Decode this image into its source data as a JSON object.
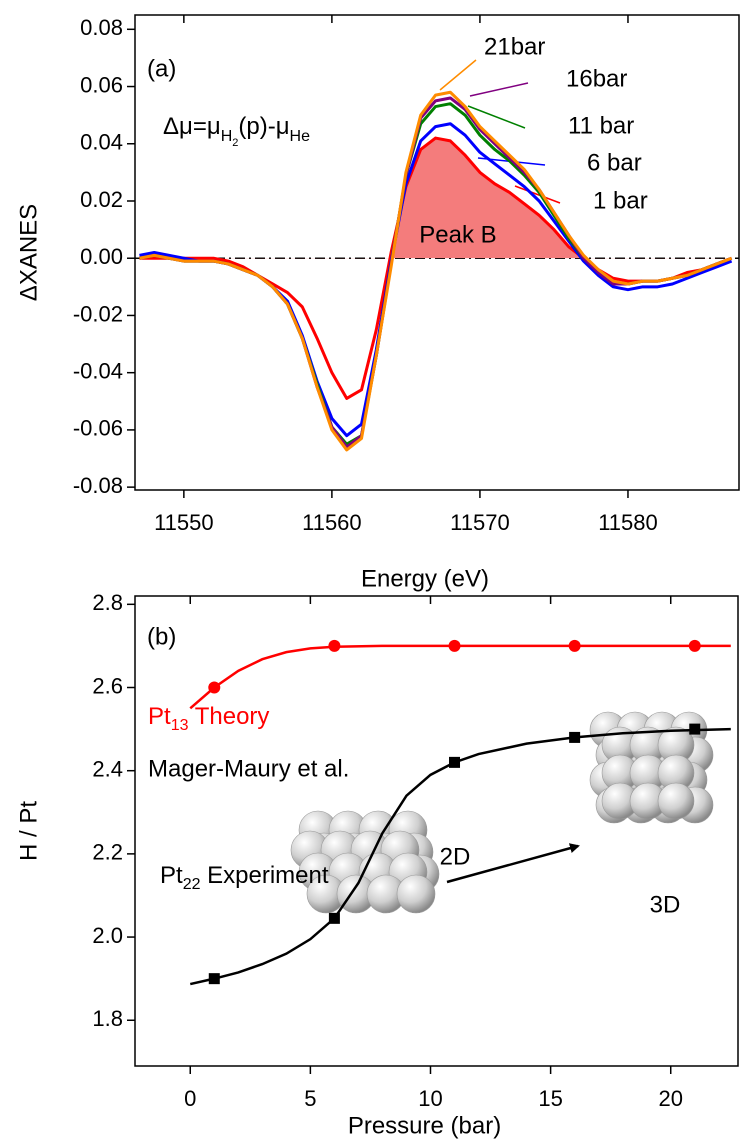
{
  "chart_data": [
    {
      "type": "line",
      "xlabel": "Energy (eV)",
      "ylabel": "ΔXANES",
      "panel_label": "(a)",
      "formula": {
        "a": "Δμ=μ",
        "b": "H",
        "c": "2",
        "d": "(p)-μ",
        "e": "He"
      },
      "annotation": "Peak B",
      "xlim": [
        11546.7,
        11587.5
      ],
      "ylim": [
        -0.081,
        0.085
      ],
      "xticks": [
        11550,
        11560,
        11570,
        11580
      ],
      "yticks": [
        0.08,
        0.06,
        0.04,
        0.02,
        {
          "value": 0,
          "label": "0.00"
        },
        -0.02,
        -0.04,
        -0.06,
        -0.08
      ],
      "x": [
        11547,
        11548,
        11549,
        11550,
        11551,
        11552,
        11553,
        11554,
        11555,
        11556,
        11557,
        11558,
        11559,
        11560,
        11561,
        11562,
        11563,
        11564,
        11565,
        11566,
        11567,
        11568,
        11569,
        11570,
        11571,
        11572,
        11573,
        11574,
        11575,
        11576,
        11577,
        11578,
        11579,
        11580,
        11581,
        11582,
        11583,
        11584,
        11585,
        11586,
        11587
      ],
      "series": [
        {
          "name": "21bar",
          "color": "#ff8c00",
          "values": [
            0.0,
            0.001,
            0.0,
            -0.001,
            -0.001,
            -0.001,
            -0.002,
            -0.004,
            -0.006,
            -0.01,
            -0.016,
            -0.028,
            -0.045,
            -0.06,
            -0.067,
            -0.063,
            -0.034,
            -0.003,
            0.03,
            0.05,
            0.057,
            0.058,
            0.053,
            0.046,
            0.041,
            0.036,
            0.031,
            0.024,
            0.016,
            0.008,
            0.001,
            -0.004,
            -0.008,
            -0.009,
            -0.008,
            -0.008,
            -0.007,
            -0.006,
            -0.004,
            -0.002,
            0.0
          ]
        },
        {
          "name": "16bar",
          "color": "#800080",
          "values": [
            0.0,
            0.001,
            0.0,
            -0.001,
            -0.001,
            -0.001,
            -0.002,
            -0.004,
            -0.006,
            -0.01,
            -0.016,
            -0.028,
            -0.045,
            -0.059,
            -0.066,
            -0.062,
            -0.034,
            -0.002,
            0.029,
            0.049,
            0.055,
            0.056,
            0.052,
            0.045,
            0.04,
            0.035,
            0.03,
            0.024,
            0.016,
            0.008,
            0.0,
            -0.005,
            -0.009,
            -0.009,
            -0.008,
            -0.008,
            -0.007,
            -0.006,
            -0.004,
            -0.002,
            0.0
          ]
        },
        {
          "name": "11 bar",
          "color": "#008000",
          "values": [
            0.0,
            0.001,
            0.0,
            -0.001,
            -0.001,
            -0.001,
            -0.002,
            -0.004,
            -0.006,
            -0.01,
            -0.016,
            -0.028,
            -0.044,
            -0.059,
            -0.065,
            -0.062,
            -0.034,
            -0.002,
            0.029,
            0.047,
            0.053,
            0.054,
            0.05,
            0.043,
            0.038,
            0.034,
            0.029,
            0.023,
            0.015,
            0.007,
            0.0,
            -0.005,
            -0.009,
            -0.009,
            -0.008,
            -0.008,
            -0.007,
            -0.006,
            -0.004,
            -0.002,
            0.0
          ]
        },
        {
          "name": "6 bar",
          "color": "#0000ff",
          "values": [
            0.001,
            0.002,
            0.001,
            0.0,
            -0.001,
            -0.001,
            -0.002,
            -0.004,
            -0.006,
            -0.01,
            -0.015,
            -0.027,
            -0.043,
            -0.056,
            -0.062,
            -0.058,
            -0.032,
            -0.001,
            0.026,
            0.041,
            0.046,
            0.047,
            0.043,
            0.037,
            0.033,
            0.029,
            0.025,
            0.02,
            0.013,
            0.006,
            -0.001,
            -0.006,
            -0.01,
            -0.011,
            -0.01,
            -0.01,
            -0.009,
            -0.007,
            -0.005,
            -0.003,
            -0.001
          ]
        },
        {
          "name": "1 bar",
          "color": "#ff0000",
          "values": [
            0.0,
            0.0,
            0.0,
            0.0,
            0.0,
            0.0,
            -0.001,
            -0.003,
            -0.006,
            -0.009,
            -0.012,
            -0.017,
            -0.028,
            -0.04,
            -0.049,
            -0.046,
            -0.025,
            0.002,
            0.025,
            0.038,
            0.042,
            0.041,
            0.036,
            0.03,
            0.026,
            0.023,
            0.019,
            0.015,
            0.01,
            0.004,
            0.0,
            -0.004,
            -0.007,
            -0.008,
            -0.008,
            -0.008,
            -0.007,
            -0.005,
            -0.004,
            -0.002,
            0.0
          ]
        }
      ]
    },
    {
      "type": "scatter",
      "xlabel": "Pressure (bar)",
      "ylabel": "H / Pt",
      "panel_label": "(b)",
      "xlim": [
        -2.3,
        22.8
      ],
      "ylim": [
        1.69,
        2.82
      ],
      "xticks": [
        0,
        5,
        10,
        15,
        20
      ],
      "yticks": [
        2.8,
        2.6,
        2.4,
        2.2,
        {
          "value": 2,
          "label": "2.0"
        },
        1.8
      ],
      "annotations": [
        "2D",
        "3D"
      ],
      "series": [
        {
          "label": {
            "a": "Pt",
            "b": "13",
            "c": " Theory"
          },
          "note": "Mager-Maury et al.",
          "color": "#ff0000",
          "marker": "circle",
          "x": [
            1,
            6,
            11,
            16,
            21
          ],
          "values": [
            2.6,
            2.7,
            2.7,
            2.7,
            2.7
          ],
          "fit_x": [
            0,
            1,
            2,
            3,
            4,
            5,
            6,
            8,
            10,
            14,
            18,
            22.5
          ],
          "fit_values": [
            2.55,
            2.6,
            2.64,
            2.668,
            2.685,
            2.694,
            2.698,
            2.7,
            2.7,
            2.7,
            2.7,
            2.7
          ]
        },
        {
          "label": {
            "a": "Pt",
            "b": "22",
            "c": " Experiment"
          },
          "color": "#000000",
          "marker": "square",
          "x": [
            1,
            6,
            11,
            16,
            21
          ],
          "values": [
            1.9,
            2.045,
            2.42,
            2.48,
            2.5
          ],
          "fit_x": [
            0,
            1,
            2,
            3,
            4,
            5,
            6,
            7,
            8,
            9,
            10,
            11,
            12,
            14,
            16,
            18,
            20,
            22.5
          ],
          "fit_values": [
            1.887,
            1.9,
            1.915,
            1.935,
            1.96,
            1.995,
            2.045,
            2.13,
            2.25,
            2.34,
            2.39,
            2.42,
            2.44,
            2.465,
            2.48,
            2.49,
            2.496,
            2.5
          ]
        }
      ]
    }
  ]
}
